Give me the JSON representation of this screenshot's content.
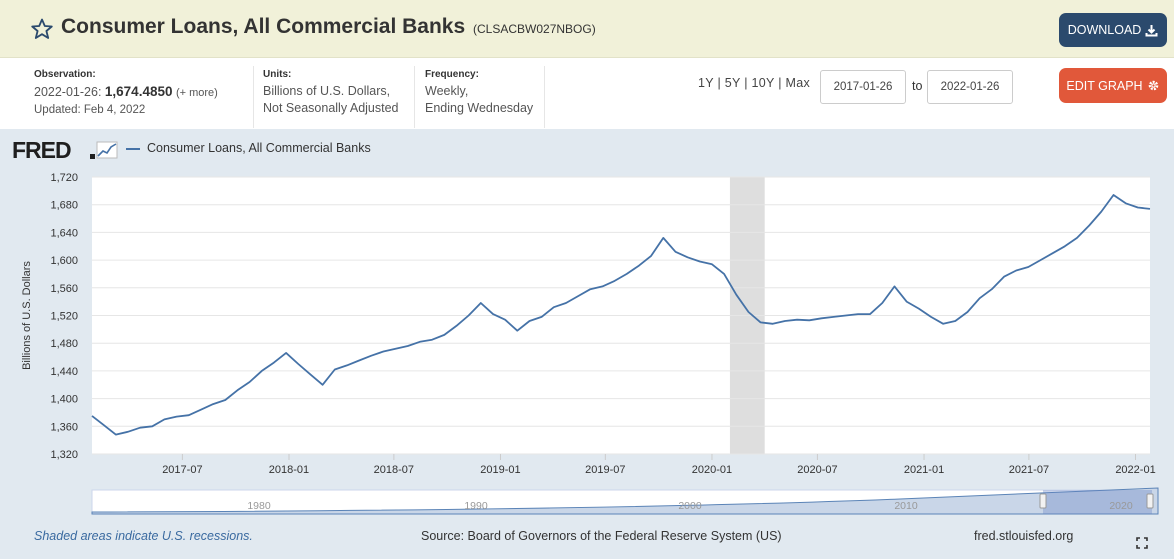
{
  "header": {
    "title": "Consumer Loans, All Commercial Banks",
    "series_id": "(CLSACBW027NBOG)",
    "download_label": "DOWNLOAD",
    "bg_color": "#f1f1d9"
  },
  "meta": {
    "observation_label": "Observation:",
    "observation_date": "2022-01-26:",
    "observation_value": "1,674.4850",
    "observation_more": "(+ more)",
    "updated": "Updated: Feb 4, 2022",
    "units_label": "Units:",
    "units_line1": "Billions of U.S. Dollars,",
    "units_line2": "Not Seasonally Adjusted",
    "frequency_label": "Frequency:",
    "frequency_line1": "Weekly,",
    "frequency_line2": "Ending Wednesday"
  },
  "controls": {
    "ranges": [
      "1Y",
      "5Y",
      "10Y",
      "Max"
    ],
    "date_from": "2017-01-26",
    "to_label": "to",
    "date_to": "2022-01-26",
    "edit_label": "EDIT GRAPH"
  },
  "legend": {
    "logo_text": "FRED",
    "series_name": "Consumer Loans, All Commercial Banks",
    "series_color": "#4572a7"
  },
  "chart_data": {
    "type": "line",
    "title": "",
    "xlabel": "",
    "ylabel": "Billions of U.S. Dollars",
    "ylim": [
      1320,
      1720
    ],
    "yticks": [
      "1,320",
      "1,360",
      "1,400",
      "1,440",
      "1,480",
      "1,520",
      "1,560",
      "1,600",
      "1,640",
      "1,680",
      "1,720"
    ],
    "x_range": [
      "2017-01-26",
      "2022-01-26"
    ],
    "xticks": [
      "2017-07",
      "2018-01",
      "2018-07",
      "2019-01",
      "2019-07",
      "2020-01",
      "2020-07",
      "2021-01",
      "2021-07",
      "2022-01"
    ],
    "grid": true,
    "legend_position": "top-left",
    "recession": {
      "start": "2020-02",
      "end": "2020-04"
    },
    "series": [
      {
        "name": "Consumer Loans, All Commercial Banks",
        "x": [
          "2017-01-26",
          "2017-02-15",
          "2017-03-08",
          "2017-03-29",
          "2017-04-19",
          "2017-05-10",
          "2017-05-31",
          "2017-06-21",
          "2017-07-12",
          "2017-08-02",
          "2017-08-23",
          "2017-09-13",
          "2017-10-04",
          "2017-10-25",
          "2017-11-15",
          "2017-12-06",
          "2017-12-27",
          "2018-01-17",
          "2018-02-07",
          "2018-02-28",
          "2018-03-21",
          "2018-04-11",
          "2018-05-02",
          "2018-05-23",
          "2018-06-13",
          "2018-07-04",
          "2018-07-25",
          "2018-08-15",
          "2018-09-05",
          "2018-09-26",
          "2018-10-17",
          "2018-11-07",
          "2018-11-28",
          "2018-12-19",
          "2019-01-09",
          "2019-01-30",
          "2019-02-20",
          "2019-03-13",
          "2019-04-03",
          "2019-04-24",
          "2019-05-15",
          "2019-06-05",
          "2019-06-26",
          "2019-07-17",
          "2019-08-07",
          "2019-08-28",
          "2019-09-18",
          "2019-10-09",
          "2019-10-30",
          "2019-11-20",
          "2019-12-11",
          "2020-01-01",
          "2020-01-22",
          "2020-02-12",
          "2020-03-04",
          "2020-03-25",
          "2020-04-15",
          "2020-05-06",
          "2020-05-27",
          "2020-06-17",
          "2020-07-08",
          "2020-07-29",
          "2020-08-19",
          "2020-09-09",
          "2020-09-30",
          "2020-10-21",
          "2020-11-11",
          "2020-12-02",
          "2020-12-23",
          "2021-01-13",
          "2021-02-03",
          "2021-02-24",
          "2021-03-17",
          "2021-04-07",
          "2021-04-28",
          "2021-05-19",
          "2021-06-09",
          "2021-06-30",
          "2021-07-21",
          "2021-08-11",
          "2021-09-01",
          "2021-09-22",
          "2021-10-13",
          "2021-11-03",
          "2021-11-24",
          "2021-12-15",
          "2022-01-05",
          "2022-01-26"
        ],
        "values": [
          1375,
          1362,
          1348,
          1352,
          1358,
          1360,
          1370,
          1374,
          1376,
          1384,
          1392,
          1398,
          1412,
          1424,
          1440,
          1452,
          1466,
          1450,
          1435,
          1420,
          1442,
          1448,
          1455,
          1462,
          1468,
          1472,
          1476,
          1482,
          1485,
          1492,
          1505,
          1520,
          1538,
          1522,
          1514,
          1498,
          1512,
          1518,
          1532,
          1538,
          1548,
          1558,
          1562,
          1570,
          1580,
          1592,
          1606,
          1632,
          1612,
          1604,
          1598,
          1594,
          1580,
          1550,
          1525,
          1510,
          1508,
          1512,
          1514,
          1513,
          1516,
          1518,
          1520,
          1522,
          1522,
          1538,
          1562,
          1540,
          1530,
          1518,
          1508,
          1512,
          1525,
          1545,
          1558,
          1576,
          1585,
          1590,
          1600,
          1610,
          1620,
          1632,
          1650,
          1670,
          1694,
          1682,
          1676,
          1674
        ]
      }
    ]
  },
  "navigator": {
    "labels": [
      "1980",
      "1990",
      "2000",
      "2010",
      "2020"
    ]
  },
  "footer": {
    "recession_note": "Shaded areas indicate U.S. recessions.",
    "source": "Source: Board of Governors of the Federal Reserve System (US)",
    "site": "fred.stlouisfed.org"
  }
}
